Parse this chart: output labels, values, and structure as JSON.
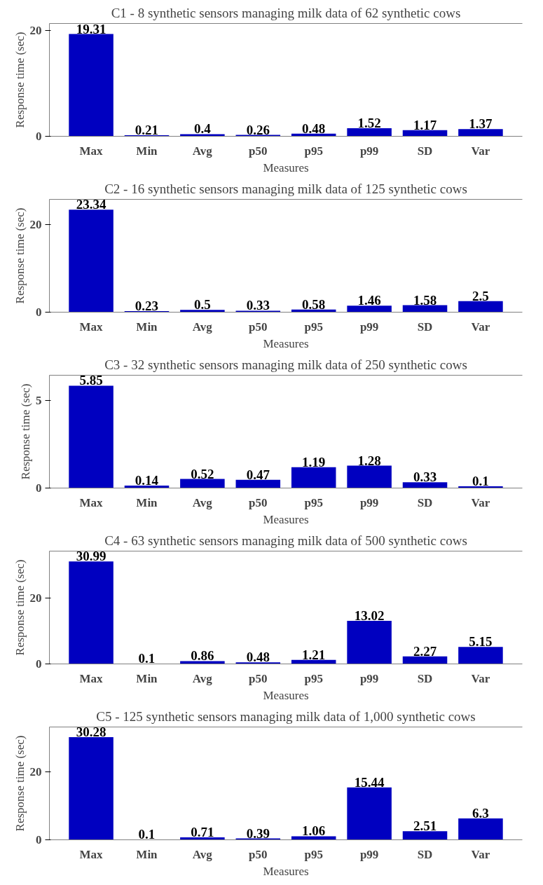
{
  "chart_data": [
    {
      "type": "bar",
      "title": "C1 - 8 synthetic sensors managing milk data of 62 synthetic cows",
      "xlabel": "Measures",
      "ylabel": "Response time (sec)",
      "categories": [
        "Max",
        "Min",
        "Avg",
        "p50",
        "p95",
        "p99",
        "SD",
        "Var"
      ],
      "values": [
        19.31,
        0.21,
        0.4,
        0.26,
        0.48,
        1.52,
        1.17,
        1.37
      ],
      "color": "#0000c0",
      "ylim": [
        0,
        21.3
      ],
      "yticks": [
        0,
        20
      ],
      "data_labels": true,
      "grid": false
    },
    {
      "type": "bar",
      "title": "C2 - 16 synthetic sensors managing milk data of 125 synthetic cows",
      "xlabel": "Measures",
      "ylabel": "Response time (sec)",
      "categories": [
        "Max",
        "Min",
        "Avg",
        "p50",
        "p95",
        "p99",
        "SD",
        "Var"
      ],
      "values": [
        23.34,
        0.23,
        0.5,
        0.33,
        0.58,
        1.46,
        1.58,
        2.5
      ],
      "color": "#0000c0",
      "ylim": [
        0,
        25.7
      ],
      "yticks": [
        0,
        20
      ],
      "data_labels": true,
      "grid": false
    },
    {
      "type": "bar",
      "title": "C3 - 32 synthetic sensors managing milk data of 250 synthetic cows",
      "xlabel": "Measures",
      "ylabel": "Response time (sec)",
      "categories": [
        "Max",
        "Min",
        "Avg",
        "p50",
        "p95",
        "p99",
        "SD",
        "Var"
      ],
      "values": [
        5.85,
        0.14,
        0.52,
        0.47,
        1.19,
        1.28,
        0.33,
        0.1
      ],
      "color": "#0000c0",
      "ylim": [
        0,
        6.45
      ],
      "yticks": [
        0,
        5
      ],
      "data_labels": true,
      "grid": false
    },
    {
      "type": "bar",
      "title": "C4 - 63 synthetic sensors managing milk data of 500 synthetic cows",
      "xlabel": "Measures",
      "ylabel": "Response time (sec)",
      "categories": [
        "Max",
        "Min",
        "Avg",
        "p50",
        "p95",
        "p99",
        "SD",
        "Var"
      ],
      "values": [
        30.99,
        0.1,
        0.86,
        0.48,
        1.21,
        13.02,
        2.27,
        5.15
      ],
      "color": "#0000c0",
      "ylim": [
        0,
        34.1
      ],
      "yticks": [
        0,
        20
      ],
      "data_labels": true,
      "grid": false
    },
    {
      "type": "bar",
      "title": "C5 - 125 synthetic sensors managing milk data of 1,000 synthetic cows",
      "xlabel": "Measures",
      "ylabel": "Response time (sec)",
      "categories": [
        "Max",
        "Min",
        "Avg",
        "p50",
        "p95",
        "p99",
        "SD",
        "Var"
      ],
      "values": [
        30.28,
        0.1,
        0.71,
        0.39,
        1.06,
        15.44,
        2.51,
        6.3
      ],
      "color": "#0000c0",
      "ylim": [
        0,
        33.3
      ],
      "yticks": [
        0,
        20
      ],
      "data_labels": true,
      "grid": false
    }
  ]
}
